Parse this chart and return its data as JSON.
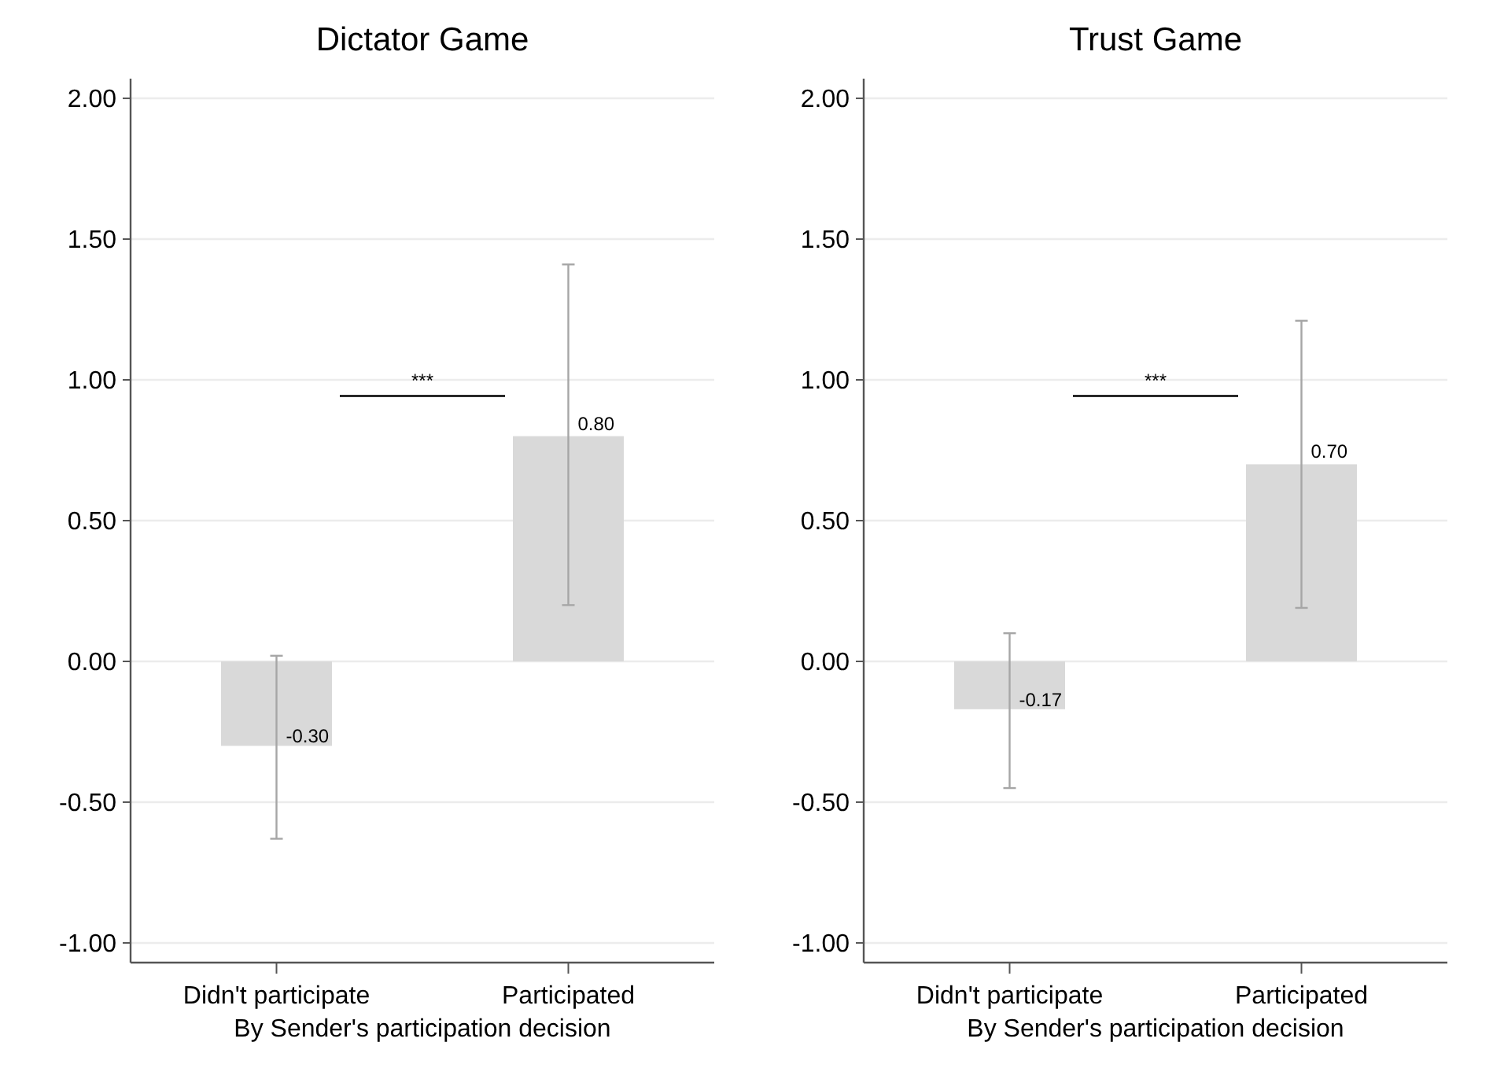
{
  "chart_data": [
    {
      "type": "bar",
      "title": "Dictator Game",
      "xlabel": "By Sender's participation decision",
      "categories": [
        "Didn't participate",
        "Participated"
      ],
      "values": [
        -0.3,
        0.8
      ],
      "value_labels": [
        "-0.30",
        "0.80"
      ],
      "color": "#d9d9d9",
      "errors": [
        [
          0.02,
          -0.63
        ],
        [
          1.41,
          0.2
        ]
      ],
      "ylim": [
        -1.07,
        2.07
      ],
      "yticks": [
        {
          "value": -1,
          "label": "-1.00"
        },
        {
          "value": -0.5,
          "label": "-0.50"
        },
        {
          "value": 0,
          "label": "0.00"
        },
        {
          "value": 0.5,
          "label": "0.50"
        },
        {
          "value": 1,
          "label": "1.00"
        },
        {
          "value": 1.5,
          "label": "1.50"
        },
        {
          "value": 2,
          "label": "2.00"
        }
      ],
      "grid": "y",
      "annotations": [
        "***"
      ]
    },
    {
      "type": "bar",
      "title": "Trust Game",
      "xlabel": "By Sender's participation decision",
      "categories": [
        "Didn't participate",
        "Participated"
      ],
      "values": [
        -0.17,
        0.7
      ],
      "value_labels": [
        "-0.17",
        "0.70"
      ],
      "color": "#d9d9d9",
      "errors": [
        [
          0.1,
          -0.45
        ],
        [
          1.21,
          0.19
        ]
      ],
      "ylim": [
        -1.07,
        2.07
      ],
      "yticks": [
        {
          "value": -1,
          "label": "-1.00"
        },
        {
          "value": -0.5,
          "label": "-0.50"
        },
        {
          "value": 0,
          "label": "0.00"
        },
        {
          "value": 0.5,
          "label": "0.50"
        },
        {
          "value": 1,
          "label": "1.00"
        },
        {
          "value": 1.5,
          "label": "1.50"
        },
        {
          "value": 2,
          "label": "2.00"
        }
      ],
      "grid": "y",
      "annotations": [
        "***"
      ]
    }
  ]
}
